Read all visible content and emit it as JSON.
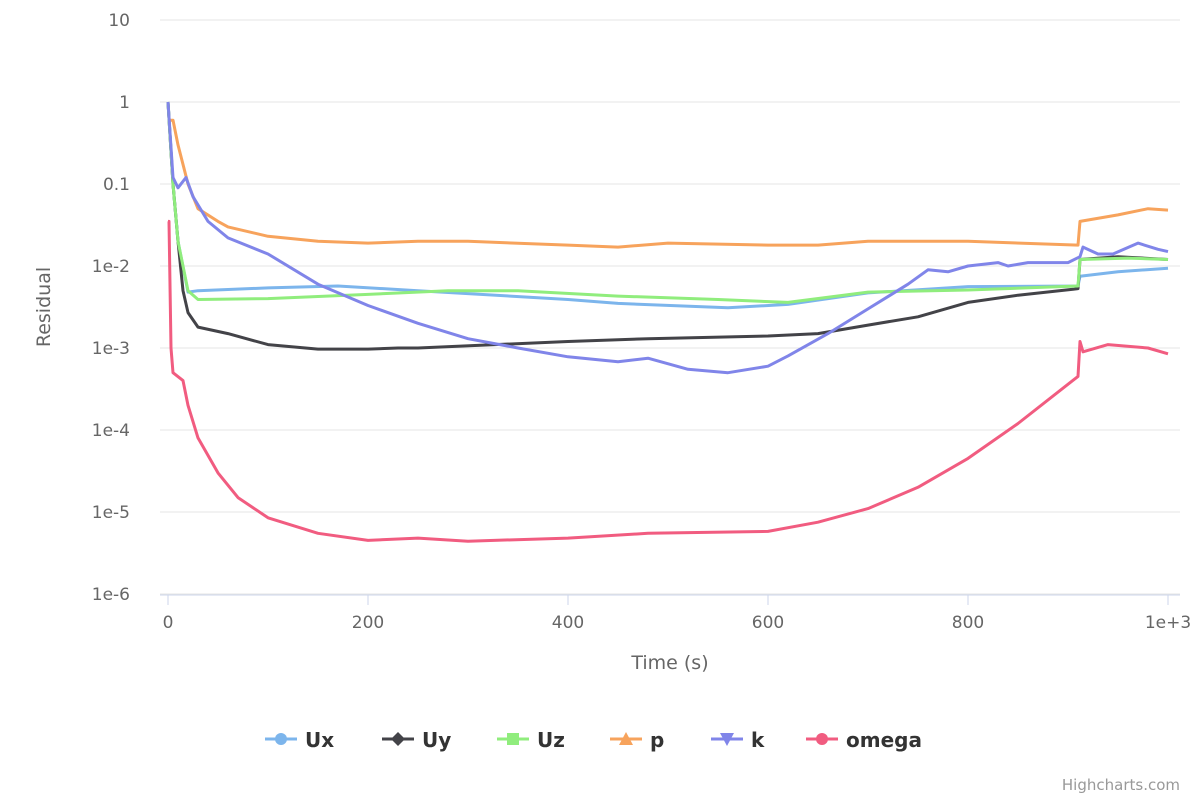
{
  "chart_data": {
    "type": "line",
    "title": "",
    "xlabel": "Time (s)",
    "ylabel": "Residual",
    "yscale": "log",
    "ylim": [
      1e-06,
      10
    ],
    "xlim": [
      0,
      1000
    ],
    "xticks": [
      {
        "v": 0,
        "label": "0"
      },
      {
        "v": 200,
        "label": "200"
      },
      {
        "v": 400,
        "label": "400"
      },
      {
        "v": 600,
        "label": "600"
      },
      {
        "v": 800,
        "label": "800"
      },
      {
        "v": 1000,
        "label": "1e+3"
      }
    ],
    "yticks": [
      {
        "v": 10,
        "label": "10"
      },
      {
        "v": 1,
        "label": "1"
      },
      {
        "v": 0.1,
        "label": "0.1"
      },
      {
        "v": 0.01,
        "label": "1e-2"
      },
      {
        "v": 0.001,
        "label": "1e-3"
      },
      {
        "v": 0.0001,
        "label": "1e-4"
      },
      {
        "v": 1e-05,
        "label": "1e-5"
      },
      {
        "v": 1e-06,
        "label": "1e-6"
      }
    ],
    "grid": true,
    "legend_position": "bottom-center",
    "credits": "Highcharts.com",
    "series": [
      {
        "name": "Ux",
        "color": "#7cb5ec",
        "marker": "circle",
        "x": [
          0,
          5,
          10,
          20,
          30,
          100,
          170,
          250,
          400,
          450,
          560,
          620,
          700,
          800,
          910,
          912,
          950,
          1000
        ],
        "y": [
          1,
          0.1,
          0.02,
          0.0048,
          0.005,
          0.0054,
          0.0057,
          0.005,
          0.0039,
          0.0035,
          0.0031,
          0.0034,
          0.0047,
          0.0056,
          0.0057,
          0.0075,
          0.0085,
          0.0094
        ]
      },
      {
        "name": "Uy",
        "color": "#434348",
        "marker": "diamond",
        "x": [
          0,
          5,
          10,
          15,
          20,
          30,
          60,
          100,
          150,
          200,
          230,
          250,
          400,
          480,
          600,
          650,
          700,
          750,
          800,
          850,
          905,
          910,
          912,
          950,
          1000
        ],
        "y": [
          1,
          0.1,
          0.02,
          0.005,
          0.0027,
          0.0018,
          0.0015,
          0.0011,
          0.00097,
          0.00097,
          0.001,
          0.001,
          0.0012,
          0.0013,
          0.0014,
          0.0015,
          0.0019,
          0.0024,
          0.0036,
          0.0044,
          0.0052,
          0.0053,
          0.012,
          0.013,
          0.012
        ]
      },
      {
        "name": "Uz",
        "color": "#90ed7d",
        "marker": "square",
        "x": [
          0,
          5,
          10,
          20,
          30,
          100,
          200,
          280,
          350,
          450,
          550,
          620,
          700,
          800,
          910,
          912,
          960,
          1000
        ],
        "y": [
          1,
          0.1,
          0.02,
          0.005,
          0.0039,
          0.004,
          0.0045,
          0.005,
          0.005,
          0.0043,
          0.0039,
          0.0036,
          0.0048,
          0.0051,
          0.0057,
          0.012,
          0.0125,
          0.012
        ]
      },
      {
        "name": "p",
        "color": "#f7a35c",
        "marker": "triangle",
        "x": [
          2,
          5,
          10,
          20,
          30,
          50,
          60,
          100,
          150,
          200,
          250,
          300,
          400,
          450,
          500,
          600,
          650,
          700,
          800,
          910,
          912,
          950,
          980,
          1000
        ],
        "y": [
          0.6,
          0.6,
          0.3,
          0.1,
          0.05,
          0.035,
          0.03,
          0.023,
          0.02,
          0.019,
          0.02,
          0.02,
          0.018,
          0.017,
          0.019,
          0.018,
          0.018,
          0.02,
          0.02,
          0.018,
          0.035,
          0.042,
          0.05,
          0.048
        ]
      },
      {
        "name": "k",
        "color": "#8085e9",
        "marker": "triangle-down",
        "x": [
          0,
          5,
          10,
          18,
          25,
          40,
          60,
          100,
          150,
          200,
          250,
          300,
          350,
          400,
          450,
          480,
          520,
          560,
          600,
          620,
          660,
          700,
          740,
          760,
          780,
          800,
          830,
          840,
          860,
          900,
          912,
          915,
          930,
          945,
          970,
          990,
          1000
        ],
        "y": [
          1,
          0.12,
          0.09,
          0.12,
          0.07,
          0.035,
          0.022,
          0.014,
          0.006,
          0.0033,
          0.002,
          0.0013,
          0.001,
          0.00078,
          0.00068,
          0.00075,
          0.00055,
          0.0005,
          0.0006,
          0.0008,
          0.0015,
          0.003,
          0.006,
          0.009,
          0.0085,
          0.01,
          0.011,
          0.01,
          0.011,
          0.011,
          0.013,
          0.017,
          0.014,
          0.014,
          0.019,
          0.016,
          0.015
        ]
      },
      {
        "name": "omega",
        "color": "#f15c80",
        "marker": "circle",
        "x": [
          0,
          1,
          3,
          5,
          15,
          20,
          30,
          50,
          70,
          100,
          150,
          200,
          250,
          300,
          400,
          480,
          600,
          650,
          700,
          750,
          800,
          850,
          910,
          912,
          915,
          940,
          980,
          1000
        ],
        "y": [
          0.035,
          0.035,
          0.001,
          0.0005,
          0.0004,
          0.0002,
          8e-05,
          3e-05,
          1.5e-05,
          8.5e-06,
          5.5e-06,
          4.5e-06,
          4.8e-06,
          4.4e-06,
          4.8e-06,
          5.5e-06,
          5.8e-06,
          7.5e-06,
          1.1e-05,
          2e-05,
          4.5e-05,
          0.00012,
          0.00045,
          0.0012,
          0.0009,
          0.0011,
          0.001,
          0.00085
        ]
      }
    ]
  }
}
